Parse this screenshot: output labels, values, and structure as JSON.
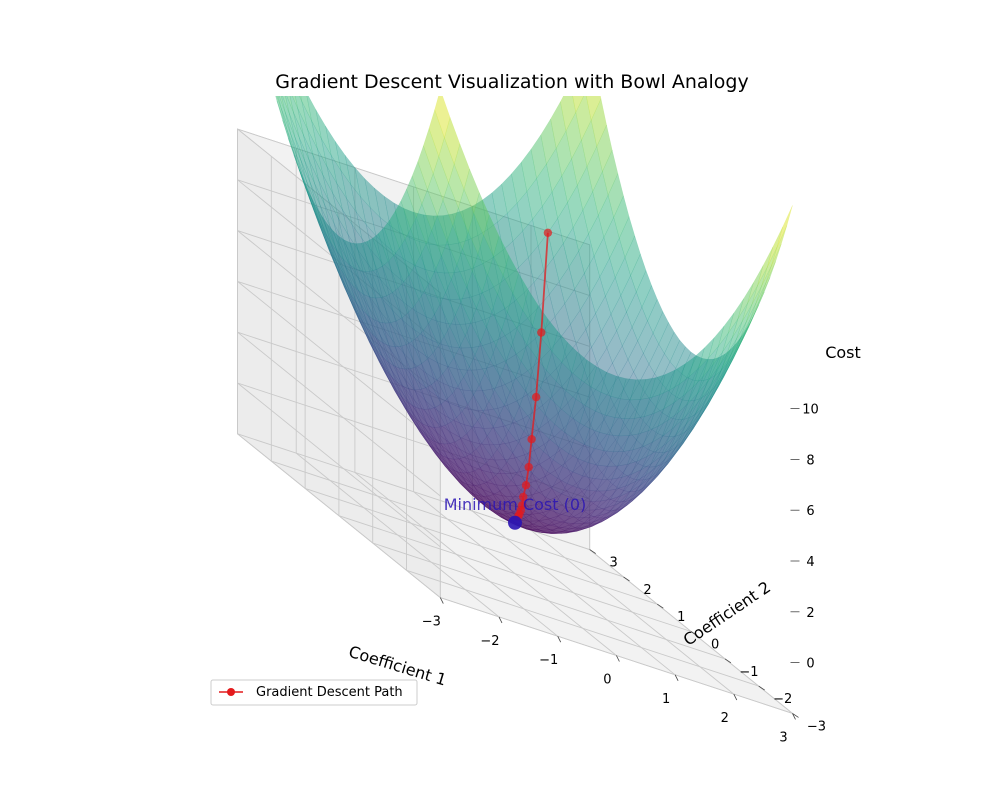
{
  "chart_data": {
    "type": "surface3d",
    "title": "Gradient Descent Visualization with Bowl Analogy",
    "xlabel": "Coefficient 1",
    "ylabel": "Coefficient 2",
    "zlabel": "Cost",
    "xlim": [
      -3,
      3
    ],
    "ylim": [
      -3,
      3
    ],
    "zlim": [
      0,
      10
    ],
    "x_ticks": [
      "−3",
      "−2",
      "−1",
      "0",
      "1",
      "2",
      "3"
    ],
    "y_ticks": [
      "−3",
      "−2",
      "−1",
      "0",
      "1",
      "2",
      "3"
    ],
    "z_ticks": [
      "0",
      "2",
      "4",
      "6",
      "8",
      "10"
    ],
    "surface": {
      "function": "x^2 + y^2",
      "colormap": "viridis",
      "alpha": 0.5
    },
    "series": [
      {
        "name": "Gradient Descent Path",
        "color": "#e41a1c",
        "marker": "circle",
        "points": [
          {
            "x": 2.0,
            "y": 2.5,
            "z": 10.25
          },
          {
            "x": 1.6,
            "y": 2.0,
            "z": 6.56
          },
          {
            "x": 1.28,
            "y": 1.6,
            "z": 4.2
          },
          {
            "x": 1.02,
            "y": 1.28,
            "z": 2.69
          },
          {
            "x": 0.82,
            "y": 1.02,
            "z": 1.72
          },
          {
            "x": 0.66,
            "y": 0.82,
            "z": 1.1
          },
          {
            "x": 0.52,
            "y": 0.66,
            "z": 0.7
          },
          {
            "x": 0.42,
            "y": 0.52,
            "z": 0.45
          },
          {
            "x": 0.34,
            "y": 0.42,
            "z": 0.29
          },
          {
            "x": 0.27,
            "y": 0.34,
            "z": 0.18
          },
          {
            "x": 0.21,
            "y": 0.27,
            "z": 0.12
          }
        ]
      }
    ],
    "minimum_point": {
      "x": 0,
      "y": 0,
      "z": 0,
      "label": "Minimum Cost (0)",
      "color": "#2a14b4"
    },
    "legend": {
      "position": "lower-left"
    },
    "grid": true
  }
}
